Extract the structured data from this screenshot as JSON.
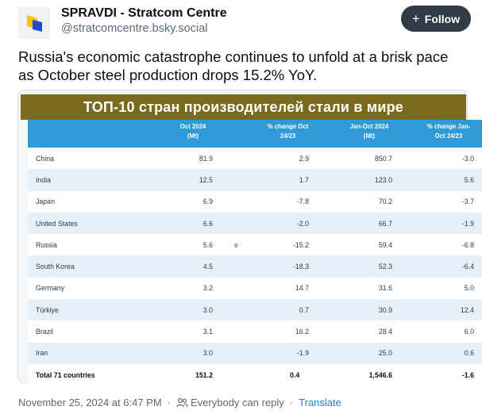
{
  "header": {
    "author_name": "SPRAVDI - Stratcom Centre",
    "author_handle": "@stratcomcentre.bsky.social",
    "follow_label": "Follow",
    "avatar_icon": "spravdi-logo-icon",
    "colors": {
      "avatar_yellow": "#f7c400",
      "avatar_blue": "#1f4bd8",
      "follow_bg": "#2f3b47"
    }
  },
  "post": {
    "text": "Russia's economic catastrophe continues to unfold at a brisk pace as October steel production drops 15.2% YoY."
  },
  "image": {
    "title": "ТОП-10 стран производителей стали в мире",
    "columns": [
      "Oct 2024\n(Mt)",
      "% change Oct\n24/23",
      "Jan-Oct 2024\n(Mt)",
      "% change Jan-\nOct 24/23"
    ],
    "colors": {
      "title_bar": "#7a6a1e",
      "header_bar": "#2e9bd6",
      "alt_row": "#e6f0f8"
    },
    "rows": [
      {
        "country": "China",
        "oct": "81.9",
        "mark": "",
        "oct_change": "2.9",
        "ytd": "850.7",
        "ytd_change": "-3.0"
      },
      {
        "country": "India",
        "oct": "12.5",
        "mark": "",
        "oct_change": "1.7",
        "ytd": "123.0",
        "ytd_change": "5.6"
      },
      {
        "country": "Japan",
        "oct": "6.9",
        "mark": "",
        "oct_change": "-7.8",
        "ytd": "70.2",
        "ytd_change": "-3.7"
      },
      {
        "country": "United States",
        "oct": "6.6",
        "mark": "",
        "oct_change": "-2.0",
        "ytd": "66.7",
        "ytd_change": "-1.9"
      },
      {
        "country": "Russia",
        "oct": "5.6",
        "mark": "e",
        "oct_change": "-15.2",
        "ytd": "59.4",
        "ytd_change": "-6.8"
      },
      {
        "country": "South Korea",
        "oct": "4.5",
        "mark": "",
        "oct_change": "-18.3",
        "ytd": "52.3",
        "ytd_change": "-6.4"
      },
      {
        "country": "Germany",
        "oct": "3.2",
        "mark": "",
        "oct_change": "14.7",
        "ytd": "31.6",
        "ytd_change": "5.0"
      },
      {
        "country": "Türkiye",
        "oct": "3.0",
        "mark": "",
        "oct_change": "0.7",
        "ytd": "30.9",
        "ytd_change": "12.4"
      },
      {
        "country": "Brazil",
        "oct": "3.1",
        "mark": "",
        "oct_change": "16.2",
        "ytd": "28.4",
        "ytd_change": "6.0"
      },
      {
        "country": "Iran",
        "oct": "3.0",
        "mark": "",
        "oct_change": "-1.9",
        "ytd": "25.0",
        "ytd_change": "0.6"
      }
    ],
    "total": {
      "country": "Total 71 countries",
      "oct": "151.2",
      "oct_change": "0.4",
      "ytd": "1,546.6",
      "ytd_change": "-1.6"
    }
  },
  "footer": {
    "timestamp": "November 25, 2024 at 6:47 PM",
    "reply_setting": "Everybody can reply",
    "reply_icon": "people-icon",
    "translate_label": "Translate"
  }
}
